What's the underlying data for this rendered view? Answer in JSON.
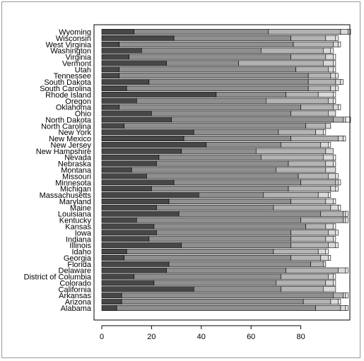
{
  "chart_data": {
    "type": "bar",
    "orientation": "horizontal",
    "stacked": true,
    "title": "",
    "xlabel": "",
    "ylabel": "",
    "xlim": [
      0,
      100
    ],
    "x_ticks": [
      0,
      20,
      40,
      60,
      80
    ],
    "grid": false,
    "legend": "none",
    "segment_colors": [
      "#474747",
      "#8f8f8f",
      "#b3b3b3",
      "#d9d9d9",
      "#f2f2f2"
    ],
    "categories": [
      "Alabama",
      "Arizona",
      "Arkansas",
      "California",
      "Colorado",
      "District of Columbia",
      "Delaware",
      "Florida",
      "Georgia",
      "Idaho",
      "Illinois",
      "Indiana",
      "Iowa",
      "Kansas",
      "Kentucky",
      "Louisiana",
      "Maine",
      "Maryland",
      "Massachusetts",
      "Michigan",
      "Minnesota",
      "Missouri",
      "Montana",
      "Nebraska",
      "Nevada",
      "New Hampshire",
      "New Jersey",
      "New Mexico",
      "New York",
      "North Carolina",
      "North Dakota",
      "Ohio",
      "Oklahoma",
      "Oregon",
      "Rhode Island",
      "South Carolina",
      "South Dakota",
      "Tennessee",
      "Utah",
      "Vermont",
      "Virginia",
      "Washington",
      "West Virginia",
      "Wisconsin",
      "Wyoming"
    ],
    "series": [
      {
        "values": [
          6,
          8,
          8,
          37,
          21,
          13,
          26,
          27,
          9,
          10,
          32,
          19,
          22,
          21,
          14,
          31,
          22,
          27,
          39,
          20,
          29,
          18,
          12,
          22,
          23,
          32,
          42,
          33,
          37,
          9,
          28,
          20,
          7,
          14,
          46,
          10,
          19,
          7,
          7,
          26,
          11,
          16,
          7,
          29,
          13
        ]
      },
      {
        "values": [
          80,
          73,
          85,
          35,
          49,
          59,
          48,
          57,
          67,
          59,
          44,
          57,
          54,
          61,
          66,
          57,
          47,
          49,
          26,
          55,
          51,
          61,
          58,
          53,
          41,
          30,
          30,
          43,
          34,
          73,
          65,
          56,
          73,
          52,
          28,
          73,
          64,
          76,
          71,
          29,
          65,
          48,
          70,
          47,
          54
        ]
      },
      {
        "values": [
          10,
          11,
          4,
          17,
          20,
          19,
          21,
          5,
          12,
          18,
          15,
          14,
          15,
          8,
          17,
          9,
          23,
          14,
          22,
          17,
          14,
          12,
          20,
          15,
          25,
          28,
          16,
          19,
          15,
          8,
          4,
          15,
          13,
          25,
          13,
          9,
          11,
          9,
          13,
          34,
          14,
          25,
          16,
          14,
          29
        ]
      },
      {
        "values": [
          2,
          3,
          1,
          5,
          3,
          2,
          3,
          1,
          3,
          3,
          3,
          3,
          3,
          3,
          1,
          1,
          3,
          3,
          4,
          2,
          1,
          3,
          4,
          3,
          4,
          3,
          3,
          2,
          3,
          2,
          1,
          3,
          2,
          2,
          6,
          2,
          2,
          2,
          2,
          4,
          3,
          3,
          2,
          4,
          3
        ]
      },
      {
        "values": [
          1,
          1,
          1,
          0,
          1,
          1,
          1,
          0,
          1,
          1,
          1,
          1,
          1,
          1,
          1,
          1,
          1,
          1,
          1,
          1,
          1,
          1,
          0,
          1,
          1,
          0,
          1,
          1,
          1,
          0,
          2,
          0,
          1,
          1,
          1,
          1,
          1,
          1,
          1,
          1,
          1,
          1,
          1,
          1,
          1
        ]
      }
    ]
  }
}
